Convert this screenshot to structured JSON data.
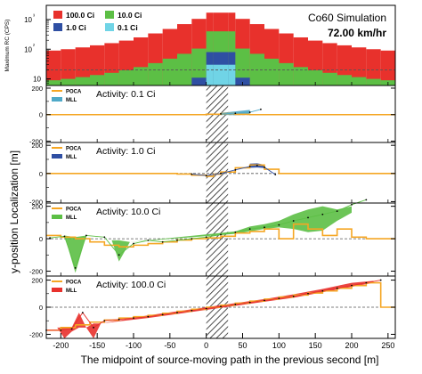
{
  "chart_data": [
    {
      "id": "top",
      "type": "bar",
      "title": "Co60 Simulation",
      "subtitle": "72.00 km/hr",
      "ylabel": "Maximum RC (CPS)",
      "yscale": "log",
      "ylim": [
        6,
        3000
      ],
      "xlim": [
        -220,
        260
      ],
      "ytick_labels": [
        "10",
        "10²",
        "10³"
      ],
      "legend": [
        {
          "label": "100.0 Ci",
          "color": "#e8312c"
        },
        {
          "label": "10.0 Ci",
          "color": "#5cbf45"
        },
        {
          "label": "1.0 Ci",
          "color": "#2f4fa3"
        },
        {
          "label": "0.1 Ci",
          "color": "#70d4e6"
        }
      ],
      "bin_edges": [
        -220,
        -200,
        -180,
        -160,
        -140,
        -120,
        -100,
        -80,
        -60,
        -40,
        -20,
        0,
        10,
        20,
        30,
        40,
        60,
        80,
        100,
        120,
        140,
        160,
        180,
        200,
        220,
        240,
        260
      ],
      "series": [
        {
          "name": "100.0 Ci",
          "color": "#e8312c",
          "values": [
            90,
            100,
            115,
            135,
            160,
            195,
            250,
            340,
            480,
            700,
            1050,
            1700,
            1700,
            1700,
            1700,
            1050,
            700,
            480,
            340,
            250,
            195,
            160,
            135,
            115,
            100,
            90
          ]
        },
        {
          "name": "10.0 Ci",
          "color": "#5cbf45",
          "values": [
            9,
            10,
            11.5,
            13.5,
            16,
            19.5,
            25,
            34,
            48,
            70,
            105,
            400,
            400,
            400,
            400,
            105,
            70,
            48,
            34,
            25,
            19.5,
            16,
            13.5,
            11.5,
            10,
            9
          ]
        },
        {
          "name": "1.0 Ci",
          "color": "#2f4fa3",
          "values": [
            0,
            0,
            0,
            0,
            0,
            0,
            0,
            0,
            0,
            0,
            11,
            80,
            80,
            80,
            80,
            11,
            0,
            0,
            0,
            0,
            0,
            0,
            0,
            0,
            0,
            0
          ]
        },
        {
          "name": "0.1 Ci",
          "color": "#70d4e6",
          "values": [
            0,
            0,
            0,
            0,
            0,
            0,
            0,
            0,
            0,
            0,
            0,
            30,
            30,
            30,
            30,
            0,
            0,
            0,
            0,
            0,
            0,
            0,
            0,
            0,
            0,
            0
          ]
        }
      ]
    },
    {
      "id": "p01",
      "type": "line",
      "title": "Activity: 0.1 Ci",
      "legend": [
        "POCA",
        "MLL"
      ],
      "band_color": "#4fa9c8",
      "ylim": [
        -210,
        220
      ],
      "ytick_labels": [
        "-200",
        "0",
        "200"
      ],
      "poca_steps": [
        [
          -220,
          0
        ],
        [
          0,
          0
        ],
        [
          0,
          3
        ],
        [
          20,
          3
        ],
        [
          20,
          8
        ],
        [
          40,
          8
        ],
        [
          40,
          2
        ],
        [
          60,
          2
        ],
        [
          60,
          0
        ],
        [
          260,
          0
        ]
      ],
      "mll_points": [
        [
          20,
          6
        ],
        [
          40,
          10
        ],
        [
          60,
          18
        ],
        [
          75,
          40
        ]
      ],
      "mll_band": [
        [
          20,
          -2,
          14
        ],
        [
          40,
          -4,
          24
        ],
        [
          60,
          0,
          36
        ]
      ]
    },
    {
      "id": "p1",
      "type": "line",
      "title": "Activity: 1.0 Ci",
      "legend": [
        "POCA",
        "MLL"
      ],
      "band_color": "#2f4fa3",
      "ylim": [
        -210,
        220
      ],
      "ytick_labels": [
        "-200",
        "0",
        "200"
      ],
      "poca_steps": [
        [
          -220,
          0
        ],
        [
          -40,
          0
        ],
        [
          -40,
          -4
        ],
        [
          -20,
          -4
        ],
        [
          -20,
          -12
        ],
        [
          0,
          -12
        ],
        [
          0,
          -20
        ],
        [
          10,
          -20
        ],
        [
          10,
          -5
        ],
        [
          20,
          -5
        ],
        [
          20,
          10
        ],
        [
          40,
          10
        ],
        [
          40,
          40
        ],
        [
          60,
          40
        ],
        [
          60,
          60
        ],
        [
          80,
          60
        ],
        [
          80,
          30
        ],
        [
          100,
          30
        ],
        [
          100,
          0
        ],
        [
          260,
          0
        ]
      ],
      "mll_points": [
        [
          -20,
          -5
        ],
        [
          0,
          -15
        ],
        [
          20,
          0
        ],
        [
          40,
          25
        ],
        [
          60,
          50
        ],
        [
          70,
          56
        ],
        [
          80,
          44
        ],
        [
          95,
          -8
        ]
      ],
      "mll_band": [
        [
          60,
          40,
          70
        ],
        [
          70,
          42,
          72
        ],
        [
          80,
          38,
          62
        ]
      ]
    },
    {
      "id": "p10",
      "type": "line",
      "title": "Activity: 10.0 Ci",
      "legend": [
        "POCA",
        "MLL"
      ],
      "band_color": "#5cbf45",
      "ylim": [
        -230,
        220
      ],
      "ytick_labels": [
        "-200",
        "0",
        "200"
      ],
      "poca_steps": [
        [
          -220,
          20
        ],
        [
          -200,
          20
        ],
        [
          -200,
          10
        ],
        [
          -180,
          10
        ],
        [
          -180,
          0
        ],
        [
          -160,
          0
        ],
        [
          -160,
          -20
        ],
        [
          -140,
          -20
        ],
        [
          -140,
          -40
        ],
        [
          -120,
          -40
        ],
        [
          -120,
          -50
        ],
        [
          -100,
          -50
        ],
        [
          -100,
          -40
        ],
        [
          -80,
          -40
        ],
        [
          -80,
          -30
        ],
        [
          -60,
          -30
        ],
        [
          -60,
          -20
        ],
        [
          -40,
          -20
        ],
        [
          -40,
          -8
        ],
        [
          -20,
          -8
        ],
        [
          -20,
          0
        ],
        [
          0,
          0
        ],
        [
          0,
          5
        ],
        [
          20,
          5
        ],
        [
          20,
          15
        ],
        [
          40,
          15
        ],
        [
          40,
          35
        ],
        [
          60,
          35
        ],
        [
          60,
          45
        ],
        [
          80,
          45
        ],
        [
          80,
          60
        ],
        [
          100,
          60
        ],
        [
          100,
          0
        ],
        [
          120,
          0
        ],
        [
          120,
          90
        ],
        [
          140,
          90
        ],
        [
          140,
          60
        ],
        [
          160,
          60
        ],
        [
          160,
          20
        ],
        [
          180,
          20
        ],
        [
          180,
          60
        ],
        [
          200,
          60
        ],
        [
          200,
          10
        ],
        [
          220,
          10
        ],
        [
          220,
          0
        ],
        [
          260,
          0
        ]
      ],
      "mll_points": [
        [
          -215,
          5
        ],
        [
          -195,
          15
        ],
        [
          -180,
          -180
        ],
        [
          -165,
          20
        ],
        [
          -140,
          10
        ],
        [
          -120,
          -100
        ],
        [
          -100,
          -30
        ],
        [
          -80,
          -10
        ],
        [
          -60,
          -20
        ],
        [
          -40,
          -10
        ],
        [
          -20,
          0
        ],
        [
          0,
          10
        ],
        [
          20,
          25
        ],
        [
          40,
          40
        ],
        [
          60,
          60
        ],
        [
          80,
          70
        ],
        [
          100,
          85
        ],
        [
          120,
          110
        ],
        [
          140,
          130
        ],
        [
          160,
          150
        ],
        [
          180,
          170
        ],
        [
          200,
          210
        ],
        [
          220,
          240
        ]
      ],
      "mll_band": [
        [
          -195,
          20,
          20
        ],
        [
          -180,
          -210,
          10
        ],
        [
          -165,
          20,
          20
        ],
        [
          -130,
          -10,
          -10
        ],
        [
          -120,
          -140,
          -10
        ],
        [
          -105,
          -20,
          -20
        ],
        [
          40,
          30,
          45
        ],
        [
          60,
          45,
          75
        ],
        [
          80,
          60,
          90
        ],
        [
          100,
          70,
          110
        ],
        [
          120,
          60,
          150
        ],
        [
          140,
          40,
          180
        ],
        [
          160,
          50,
          200
        ],
        [
          180,
          110,
          180
        ],
        [
          200,
          160,
          200
        ]
      ]
    },
    {
      "id": "p100",
      "type": "line",
      "title": "Activity: 100.0 Ci",
      "legend": [
        "POCA",
        "MLL"
      ],
      "band_color": "#e8312c",
      "ylim": [
        -230,
        230
      ],
      "ytick_labels": [
        "-200",
        "0",
        "200"
      ],
      "poca_steps": [
        [
          -220,
          -170
        ],
        [
          -200,
          -170
        ],
        [
          -200,
          -150
        ],
        [
          -180,
          -150
        ],
        [
          -180,
          -130
        ],
        [
          -160,
          -130
        ],
        [
          -160,
          -110
        ],
        [
          -140,
          -110
        ],
        [
          -140,
          -95
        ],
        [
          -120,
          -95
        ],
        [
          -120,
          -80
        ],
        [
          -100,
          -80
        ],
        [
          -100,
          -70
        ],
        [
          -80,
          -70
        ],
        [
          -80,
          -60
        ],
        [
          -60,
          -60
        ],
        [
          -60,
          -45
        ],
        [
          -40,
          -45
        ],
        [
          -40,
          -30
        ],
        [
          -20,
          -30
        ],
        [
          -20,
          -15
        ],
        [
          0,
          -15
        ],
        [
          0,
          0
        ],
        [
          20,
          0
        ],
        [
          20,
          15
        ],
        [
          40,
          15
        ],
        [
          40,
          30
        ],
        [
          60,
          30
        ],
        [
          60,
          45
        ],
        [
          80,
          45
        ],
        [
          80,
          60
        ],
        [
          100,
          60
        ],
        [
          100,
          75
        ],
        [
          120,
          75
        ],
        [
          120,
          90
        ],
        [
          140,
          90
        ],
        [
          140,
          105
        ],
        [
          160,
          105
        ],
        [
          160,
          120
        ],
        [
          180,
          120
        ],
        [
          180,
          140
        ],
        [
          200,
          140
        ],
        [
          200,
          160
        ],
        [
          220,
          160
        ],
        [
          220,
          180
        ],
        [
          240,
          180
        ],
        [
          240,
          0
        ],
        [
          260,
          0
        ]
      ],
      "mll_points": [
        [
          -220,
          -170
        ],
        [
          -200,
          -170
        ],
        [
          -185,
          -160
        ],
        [
          -170,
          -40
        ],
        [
          -155,
          -150
        ],
        [
          -140,
          -100
        ],
        [
          -120,
          -90
        ],
        [
          -100,
          -80
        ],
        [
          -80,
          -70
        ],
        [
          -60,
          -55
        ],
        [
          -40,
          -40
        ],
        [
          -20,
          -25
        ],
        [
          0,
          -10
        ],
        [
          20,
          5
        ],
        [
          40,
          20
        ],
        [
          60,
          35
        ],
        [
          80,
          50
        ],
        [
          100,
          65
        ],
        [
          120,
          80
        ],
        [
          140,
          100
        ],
        [
          160,
          120
        ],
        [
          180,
          140
        ],
        [
          200,
          160
        ],
        [
          220,
          180
        ],
        [
          240,
          200
        ]
      ],
      "mll_band": [
        [
          -205,
          -150,
          -150
        ],
        [
          -195,
          -230,
          -150
        ],
        [
          -185,
          -180,
          -150
        ],
        [
          -175,
          -150,
          -40
        ],
        [
          -165,
          -150,
          -150
        ],
        [
          -155,
          -230,
          -120
        ],
        [
          -145,
          -120,
          -120
        ],
        [
          -80,
          -80,
          -60
        ],
        [
          -40,
          -50,
          -30
        ],
        [
          0,
          -20,
          0
        ],
        [
          40,
          10,
          30
        ],
        [
          80,
          40,
          60
        ],
        [
          120,
          70,
          95
        ],
        [
          160,
          110,
          135
        ],
        [
          200,
          150,
          180
        ],
        [
          230,
          180,
          195
        ]
      ]
    }
  ],
  "shared_x": {
    "xlim": [
      -220,
      260
    ],
    "xticks": [
      -200,
      -150,
      -100,
      -50,
      0,
      50,
      100,
      150,
      200,
      250
    ],
    "xlabel": "The midpoint of source-moving path in the previous second [m]",
    "ylabel": "y-position  Localization  [m]",
    "hatch_range": [
      0,
      30
    ]
  },
  "colors": {
    "poca": "#f5a623",
    "dashed": "#555555"
  }
}
